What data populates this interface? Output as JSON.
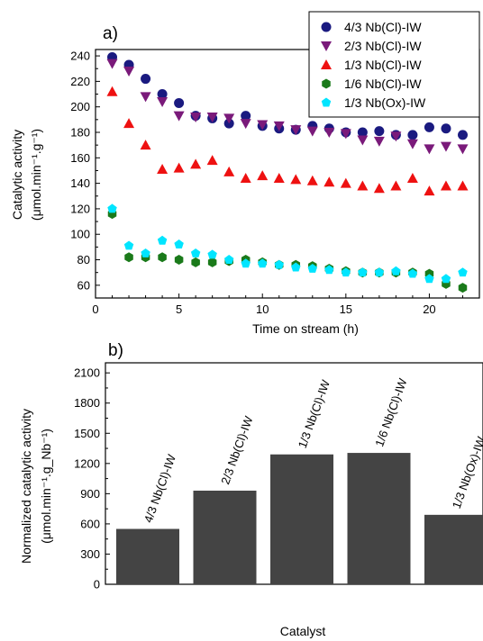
{
  "chart_data": [
    {
      "type": "scatter",
      "panel_label": "a)",
      "xlabel": "Time on stream (h)",
      "ylabel_lines": [
        "Catalytic activity",
        "(μmol.min⁻¹.g⁻¹)"
      ],
      "xlim": [
        0,
        23
      ],
      "ylim": [
        50,
        245
      ],
      "xticks": [
        0,
        5,
        10,
        15,
        20
      ],
      "yticks": [
        60,
        80,
        100,
        120,
        140,
        160,
        180,
        200,
        220,
        240
      ],
      "legend_position": "top-right",
      "series": [
        {
          "name": "4/3 Nb(Cl)-IW",
          "marker": "circle",
          "color": "#1a1a80",
          "x": [
            1,
            2,
            3,
            4,
            5,
            6,
            7,
            8,
            9,
            10,
            11,
            12,
            13,
            14,
            15,
            16,
            17,
            18,
            19,
            20,
            21,
            22
          ],
          "y": [
            239,
            233,
            222,
            210,
            203,
            193,
            191,
            187,
            193,
            185,
            183,
            182,
            185,
            183,
            180,
            180,
            181,
            178,
            178,
            184,
            183,
            178
          ]
        },
        {
          "name": "2/3 Nb(Cl)-IW",
          "marker": "triangle-down",
          "color": "#7a1a7a",
          "x": [
            1,
            2,
            3,
            4,
            5,
            6,
            7,
            8,
            9,
            10,
            11,
            12,
            13,
            14,
            15,
            16,
            17,
            18,
            19,
            20,
            21,
            22
          ],
          "y": [
            234,
            228,
            208,
            204,
            193,
            192,
            192,
            191,
            187,
            186,
            185,
            182,
            181,
            180,
            179,
            174,
            173,
            177,
            171,
            167,
            169,
            167
          ]
        },
        {
          "name": "1/3 Nb(Cl)-IW",
          "marker": "triangle-up",
          "color": "#ee1111",
          "x": [
            1,
            2,
            3,
            4,
            5,
            6,
            7,
            8,
            9,
            10,
            11,
            12,
            13,
            14,
            15,
            16,
            17,
            18,
            19,
            20,
            21,
            22
          ],
          "y": [
            212,
            187,
            170,
            151,
            152,
            155,
            158,
            149,
            144,
            146,
            144,
            143,
            142,
            141,
            140,
            138,
            136,
            138,
            144,
            134,
            138,
            138
          ]
        },
        {
          "name": "1/6 Nb(Cl)-IW",
          "marker": "hexagon",
          "color": "#1a7a1a",
          "x": [
            1,
            2,
            3,
            4,
            5,
            6,
            7,
            8,
            9,
            10,
            11,
            12,
            13,
            14,
            15,
            16,
            17,
            18,
            19,
            20,
            21,
            22
          ],
          "y": [
            116,
            82,
            82,
            82,
            80,
            78,
            78,
            79,
            80,
            78,
            76,
            76,
            75,
            73,
            71,
            70,
            70,
            70,
            70,
            69,
            61,
            58
          ]
        },
        {
          "name": "1/3 Nb(Ox)-IW",
          "marker": "pentagon",
          "color": "#00e5ff",
          "x": [
            1,
            2,
            3,
            4,
            5,
            6,
            7,
            8,
            9,
            10,
            11,
            12,
            13,
            14,
            15,
            16,
            17,
            18,
            19,
            20,
            21,
            22
          ],
          "y": [
            120,
            91,
            85,
            95,
            92,
            85,
            84,
            80,
            77,
            77,
            76,
            74,
            73,
            72,
            70,
            70,
            70,
            71,
            69,
            65,
            65,
            70
          ]
        }
      ]
    },
    {
      "type": "bar",
      "panel_label": "b)",
      "xlabel": "Catalyst",
      "ylabel_lines": [
        "Normalized catalytic activity",
        "(μmol.min⁻¹.g_Nb⁻¹)"
      ],
      "ylim": [
        0,
        2200
      ],
      "yticks": [
        0,
        300,
        600,
        900,
        1200,
        1500,
        1800,
        2100
      ],
      "categories": [
        "4/3 Nb(Cl)-IW",
        "2/3 Nb(Cl)-IW",
        "1/3 Nb(Cl)-IW",
        "1/6 Nb(Cl)-IW",
        "1/3 Nb(Ox)-IW"
      ],
      "values": [
        550,
        930,
        1290,
        1305,
        690
      ],
      "bar_color": "#444444"
    }
  ]
}
